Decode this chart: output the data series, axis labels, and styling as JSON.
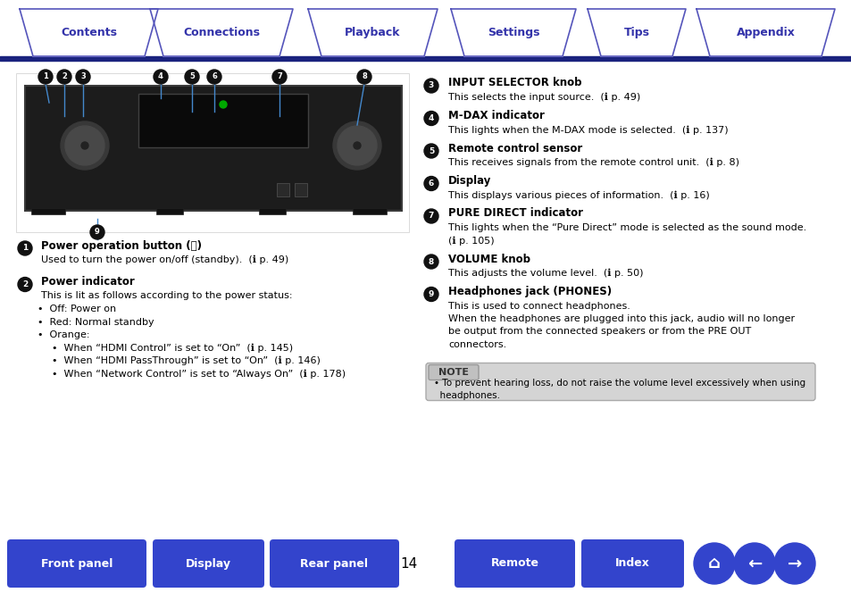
{
  "page_bg": "#ffffff",
  "tab_labels": [
    "Contents",
    "Connections",
    "Playback",
    "Settings",
    "Tips",
    "Appendix"
  ],
  "tab_text_color": "#3333aa",
  "tab_border_color": "#5555bb",
  "tab_line_color": "#1a237e",
  "bottom_btn_color": "#3344cc",
  "bottom_btn_text": "#ffffff",
  "page_number": "14",
  "num_circle_color": "#111111",
  "link_color": "#3355aa",
  "note_bg": "#d8d8d8",
  "note_border": "#aaaaaa",
  "items_left": [
    {
      "num": "1",
      "title": "Power operation button (⏻)",
      "lines": [
        "Used to turn the power on/off (standby).  (ℹ p. 49)"
      ]
    },
    {
      "num": "2",
      "title": "Power indicator",
      "lines": [
        "This is lit as follows according to the power status:",
        "b:Off: Power on",
        "b:Red: Normal standby",
        "b:Orange:",
        "s:When “HDMI Control” is set to “On”  (ℹ p. 145)",
        "s:When “HDMI PassThrough” is set to “On”  (ℹ p. 146)",
        "s:When “Network Control” is set to “Always On”  (ℹ p. 178)"
      ]
    }
  ],
  "items_right": [
    {
      "num": "3",
      "title": "INPUT SELECTOR knob",
      "lines": [
        "This selects the input source.  (ℹ p. 49)"
      ]
    },
    {
      "num": "4",
      "title": "M-DAX indicator",
      "lines": [
        "This lights when the M-DAX mode is selected.  (ℹ p. 137)"
      ]
    },
    {
      "num": "5",
      "title": "Remote control sensor",
      "lines": [
        "This receives signals from the remote control unit.  (ℹ p. 8)"
      ]
    },
    {
      "num": "6",
      "title": "Display",
      "lines": [
        "This displays various pieces of information.  (ℹ p. 16)"
      ]
    },
    {
      "num": "7",
      "title": "PURE DIRECT indicator",
      "lines": [
        "This lights when the “Pure Direct” mode is selected as the sound mode.",
        "i:(ℹ p. 105)"
      ]
    },
    {
      "num": "8",
      "title": "VOLUME knob",
      "lines": [
        "This adjusts the volume level.  (ℹ p. 50)"
      ]
    },
    {
      "num": "9",
      "title": "Headphones jack (PHONES)",
      "lines": [
        "This is used to connect headphones.",
        "When the headphones are plugged into this jack, audio will no longer",
        "be output from the connected speakers or from the PRE OUT",
        "connectors."
      ]
    }
  ],
  "note_text": [
    "• To prevent hearing loss, do not raise the volume level excessively when using",
    "  headphones."
  ]
}
